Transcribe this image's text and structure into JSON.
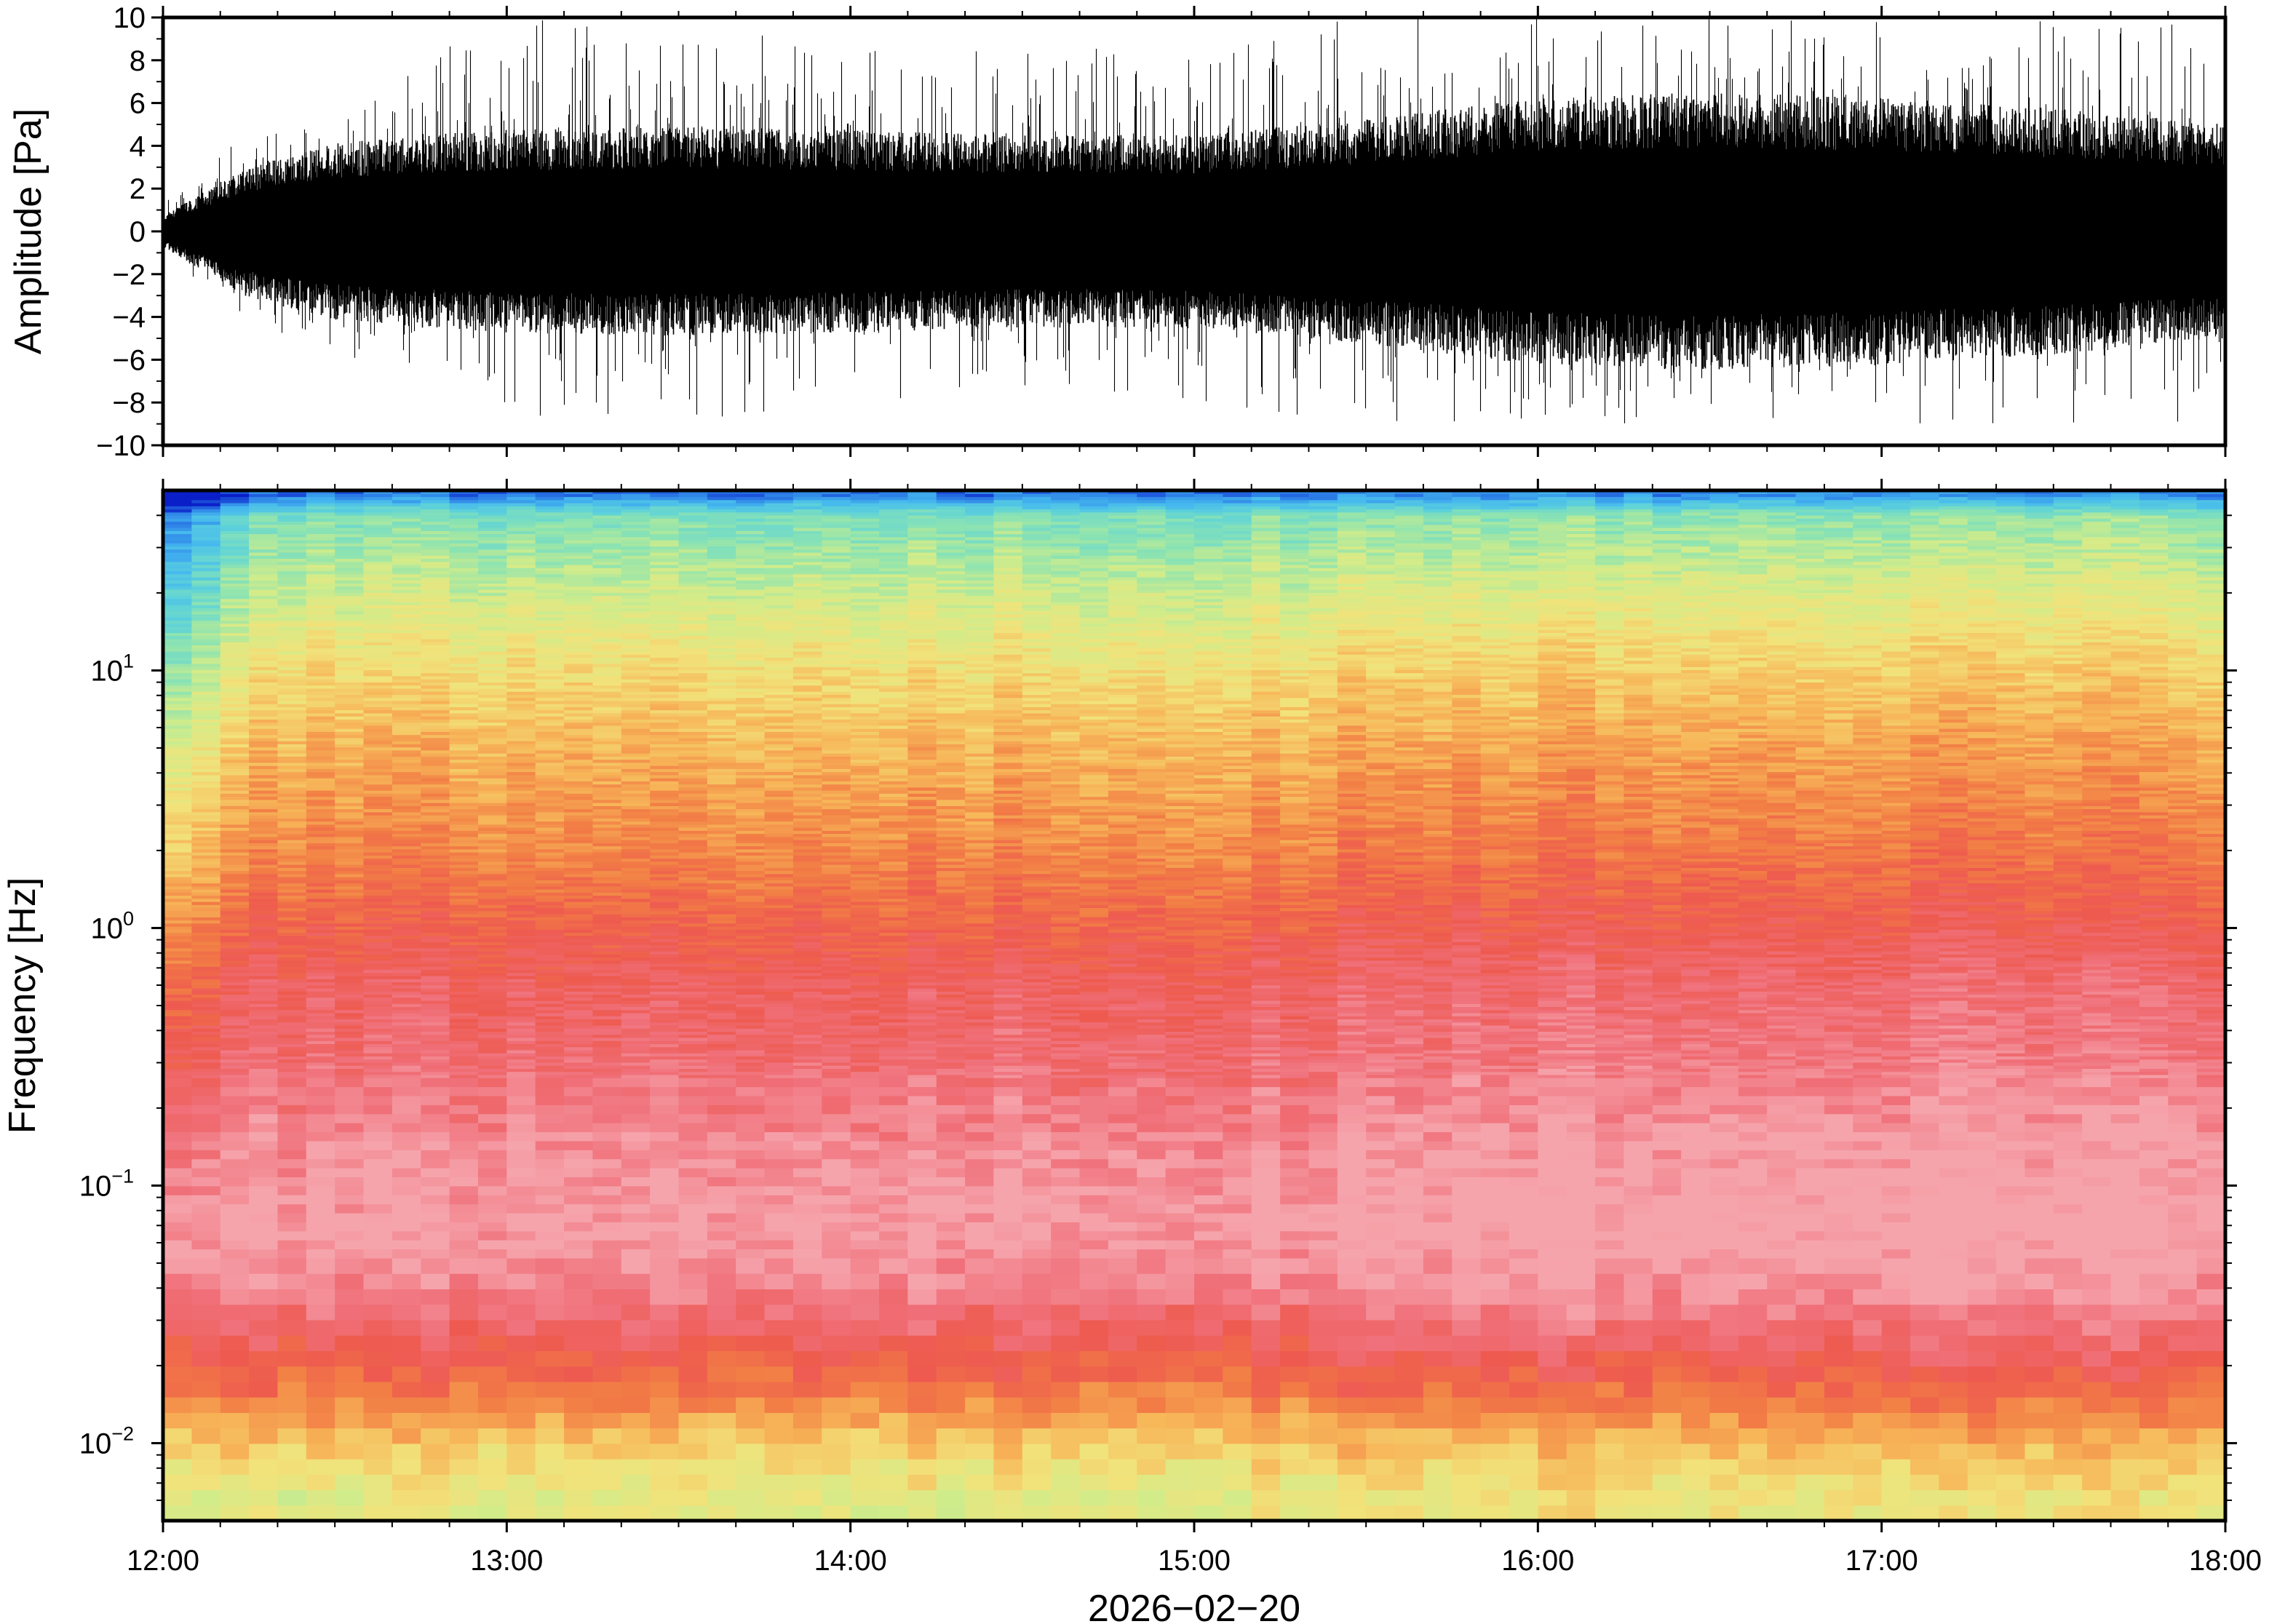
{
  "chart_data": [
    {
      "type": "line",
      "panel": "waveform",
      "title": "",
      "xlabel": "",
      "ylabel": "Amplitude [Pa]",
      "xlim": [
        "12:00",
        "18:00"
      ],
      "ylim": [
        -10,
        10
      ],
      "y_ticks": [
        "10",
        "8",
        "6",
        "4",
        "2",
        "0",
        "−2",
        "−4",
        "−6",
        "−8",
        "−10"
      ],
      "y_tick_values": [
        10,
        8,
        6,
        4,
        2,
        0,
        -2,
        -4,
        -6,
        -8,
        -10
      ],
      "grid": false,
      "color": "#000000",
      "envelope": {
        "time_hours": [
          12.0,
          12.25,
          12.5,
          12.75,
          13.0,
          13.5,
          14.0,
          14.5,
          15.0,
          15.5,
          16.0,
          16.5,
          17.0,
          17.5,
          18.0
        ],
        "typical_amplitude_pa": [
          0.6,
          2.5,
          3.3,
          3.6,
          3.8,
          3.9,
          3.8,
          3.6,
          3.6,
          4.2,
          5.0,
          5.2,
          5.0,
          4.6,
          4.0
        ],
        "peak_amplitude_pa": [
          1.5,
          5.5,
          6.5,
          8.0,
          10,
          10,
          9,
          8.5,
          9,
          10,
          10,
          10,
          10,
          10,
          10
        ]
      }
    },
    {
      "type": "heatmap",
      "panel": "spectrogram",
      "title": "",
      "xlabel": "2026−02−20",
      "ylabel": "Frequency [Hz]",
      "x_ticks": [
        "12:00",
        "13:00",
        "14:00",
        "15:00",
        "16:00",
        "17:00",
        "18:00"
      ],
      "y_scale": "log",
      "ylim_hz": [
        0.005,
        50
      ],
      "y_ticks": [
        {
          "base": "10",
          "exp": "1",
          "value": 10
        },
        {
          "base": "10",
          "exp": "0",
          "value": 1
        },
        {
          "base": "10",
          "exp": "−1",
          "value": 0.1
        },
        {
          "base": "10",
          "exp": "−2",
          "value": 0.01
        }
      ],
      "colormap": [
        "#0a1fc8",
        "#2a7ae6",
        "#45b8ef",
        "#5fd3d8",
        "#8ee4b0",
        "#d2ec8a",
        "#f2e27a",
        "#f7b558",
        "#f27e45",
        "#ee5a4f",
        "#f0707a",
        "#f6a4ac"
      ],
      "relative_power_profile": {
        "frequency_hz": [
          0.006,
          0.01,
          0.015,
          0.025,
          0.04,
          0.07,
          0.15,
          0.3,
          0.6,
          1.0,
          2.0,
          5.0,
          10,
          20,
          40,
          48
        ],
        "level_0_to_1": [
          0.5,
          0.6,
          0.73,
          0.85,
          0.95,
          1.0,
          0.96,
          0.9,
          0.86,
          0.8,
          0.72,
          0.64,
          0.56,
          0.46,
          0.34,
          0.1
        ]
      },
      "early_quiet_interval": [
        "12:00",
        "12:20"
      ]
    }
  ]
}
